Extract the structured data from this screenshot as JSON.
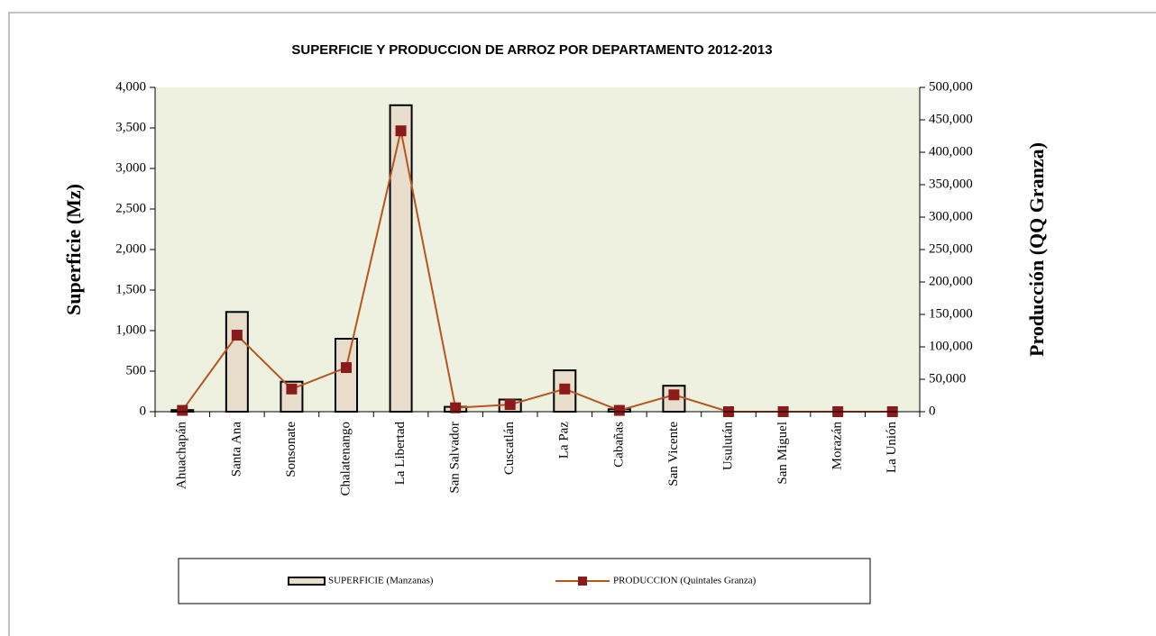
{
  "chart_data": {
    "type": "bar_line",
    "title": "SUPERFICIE Y PRODUCCION DE ARROZ POR DEPARTAMENTO 2012-2013",
    "y_label": "Superficie (Mz)",
    "y2_label": "Producción (QQ Granza)",
    "categories": [
      "Ahuachapán",
      "Santa Ana",
      "Sonsonate",
      "Chalatenango",
      "La Libertad",
      "San Salvador",
      "Cuscatlán",
      "La Paz",
      "Cabañas",
      "San Vicente",
      "Usulután",
      "San Miguel",
      "Morazán",
      "La Unión"
    ],
    "series": [
      {
        "name": "SUPERFICIE (Manzanas)",
        "type": "bar",
        "color": "#e8dccb",
        "values": [
          20,
          1230,
          370,
          900,
          3780,
          60,
          150,
          510,
          30,
          320,
          0,
          0,
          0,
          0
        ]
      },
      {
        "name": "PRODUCCION (Quintales Granza)",
        "type": "line",
        "axis": "y2",
        "color": "#b5561f",
        "marker_color": "#8b1a1a",
        "values": [
          2000,
          118000,
          35000,
          68000,
          433000,
          6000,
          11000,
          35000,
          2000,
          26000,
          0,
          0,
          0,
          0
        ]
      }
    ],
    "ylim": [
      0,
      4000
    ],
    "yticks": [
      0,
      500,
      {
        "value": 1000,
        "label": "1,000"
      },
      {
        "value": 1500,
        "label": "1,500"
      },
      {
        "value": 2000,
        "label": "2,000"
      },
      {
        "value": 2500,
        "label": "2,500"
      },
      {
        "value": 3000,
        "label": "3,000"
      },
      {
        "value": 3500,
        "label": "3,500"
      },
      {
        "value": 4000,
        "label": "4,000"
      }
    ],
    "y2lim": [
      0,
      500000
    ],
    "y2ticks": [
      0,
      {
        "value": 50000,
        "label": "50,000"
      },
      {
        "value": 100000,
        "label": "100,000"
      },
      {
        "value": 150000,
        "label": "150,000"
      },
      {
        "value": 200000,
        "label": "200,000"
      },
      {
        "value": 250000,
        "label": "250,000"
      },
      {
        "value": 300000,
        "label": "300,000"
      },
      {
        "value": 350000,
        "label": "350,000"
      },
      {
        "value": 400000,
        "label": "400,000"
      },
      {
        "value": 450000,
        "label": "450,000"
      },
      {
        "value": 500000,
        "label": "500,000"
      }
    ],
    "plot_background": "#eef1e0",
    "legend": "bottom"
  }
}
